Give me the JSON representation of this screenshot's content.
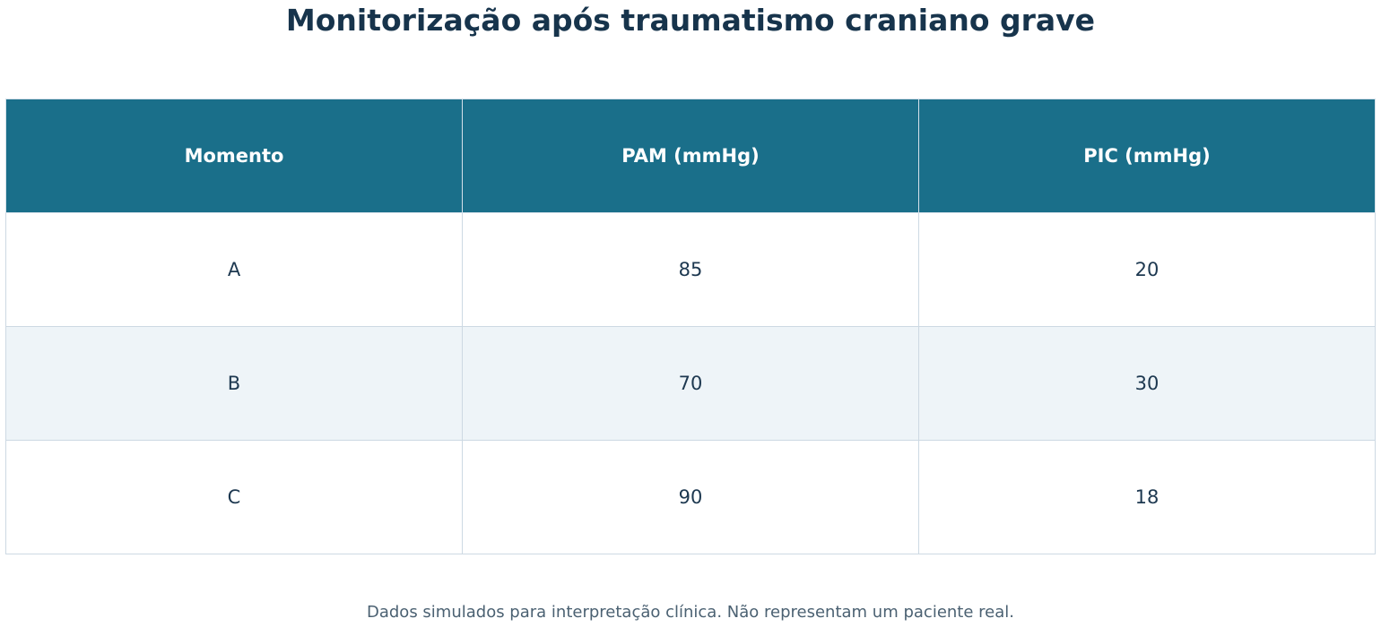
{
  "chart_data": {
    "type": "table",
    "title": "Monitorização após traumatismo craniano grave",
    "columns": [
      "Momento",
      "PAM (mmHg)",
      "PIC (mmHg)"
    ],
    "rows": [
      [
        "A",
        "85",
        "20"
      ],
      [
        "B",
        "70",
        "30"
      ],
      [
        "C",
        "90",
        "18"
      ]
    ],
    "footnote": "Dados simulados para interpretação clínica. Não representam um paciente real.",
    "colors": {
      "header_bg": "#1a6f8a",
      "header_text": "#ffffff",
      "stripe_bg": "#eef4f8",
      "text": "#1d3850"
    }
  }
}
